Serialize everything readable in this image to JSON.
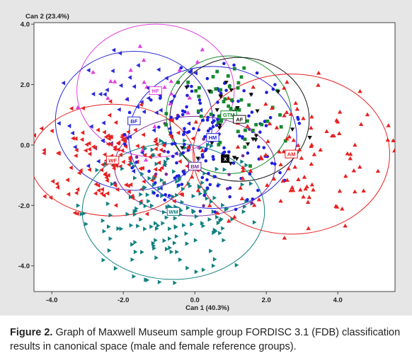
{
  "caption": {
    "label": "Figure 2.",
    "text": "Graph of Maxwell Museum sample group FORDISC 3.1 (FDB) classification results in canonical space (male and female reference groups)."
  },
  "chart_data": {
    "type": "scatter",
    "xlabel": "Can 1 (40.3%)",
    "ylabel": "Can 2 (23.4%)",
    "xlim": [
      -4.5,
      5.6
    ],
    "ylim": [
      -4.85,
      4.05
    ],
    "xticks": [
      "-4.0",
      "-2.0",
      "0.0",
      "2.0",
      "4.0"
    ],
    "xtick_values": [
      -4,
      -2,
      0,
      2,
      4
    ],
    "yticks": [
      "4.0",
      "2.0",
      "0.0",
      "-2.0",
      "-4.0"
    ],
    "ytick_values": [
      4,
      2,
      0,
      -2,
      -4
    ],
    "grid": false,
    "groups": [
      {
        "label": "HF",
        "centroid": [
          -1.1,
          1.8
        ],
        "radius": [
          2.2,
          2.2
        ],
        "color": "#e040e0",
        "marker": "triangle-up",
        "count": 25
      },
      {
        "label": "BF",
        "centroid": [
          -1.7,
          0.8
        ],
        "radius": [
          2.2,
          2.3
        ],
        "color": "#2a2ad8",
        "marker": "triangle-left",
        "count": 55
      },
      {
        "label": "WF",
        "centroid": [
          -2.3,
          -0.5
        ],
        "radius": [
          2.3,
          1.85
        ],
        "color": "#e82020",
        "marker": "triangle-left",
        "count": 150
      },
      {
        "label": "WM",
        "centroid": [
          -0.6,
          -2.2
        ],
        "radius": [
          2.55,
          2.25
        ],
        "color": "#108080",
        "marker": "triangle-right",
        "count": 180
      },
      {
        "label": "BM",
        "centroid": [
          0.0,
          -0.7
        ],
        "radius": [
          2.25,
          1.65
        ],
        "color": "#7a2a9a",
        "marker": "circle",
        "count": 15
      },
      {
        "label": "HM",
        "centroid": [
          0.5,
          0.25
        ],
        "radius": [
          2.35,
          2.35
        ],
        "color": "#2020e0",
        "marker": "circle",
        "count": 150
      },
      {
        "label": "GTM",
        "centroid": [
          0.95,
          1.0
        ],
        "radius": [
          1.75,
          1.95
        ],
        "color": "#138a2e",
        "marker": "square",
        "count": 55
      },
      {
        "label": "AF",
        "centroid": [
          1.25,
          0.85
        ],
        "radius": [
          1.95,
          2.05
        ],
        "color": "#111111",
        "marker": "triangle-down",
        "count": 28
      },
      {
        "label": "AM",
        "centroid": [
          2.7,
          -0.3
        ],
        "radius": [
          2.75,
          2.65
        ],
        "color": "#e82020",
        "marker": "triangle-up",
        "count": 110
      }
    ],
    "sample_point": {
      "label": "X",
      "x": 0.85,
      "y": -0.45
    }
  }
}
